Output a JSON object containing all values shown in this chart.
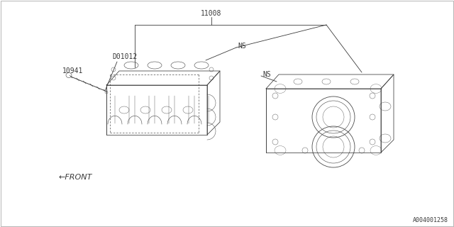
{
  "bg_color": "#ffffff",
  "line_color": "#3a3a3a",
  "label_11008": "11008",
  "label_10941": "10941",
  "label_D01012": "D01012",
  "label_NS1": "NS",
  "label_NS2": "NS",
  "label_FRONT": "←FRONT",
  "label_ref": "A004001258",
  "font_size_labels": 7,
  "font_size_ref": 6,
  "border_color": "#888888",
  "leader_lw": 0.6,
  "block_lw": 0.55
}
